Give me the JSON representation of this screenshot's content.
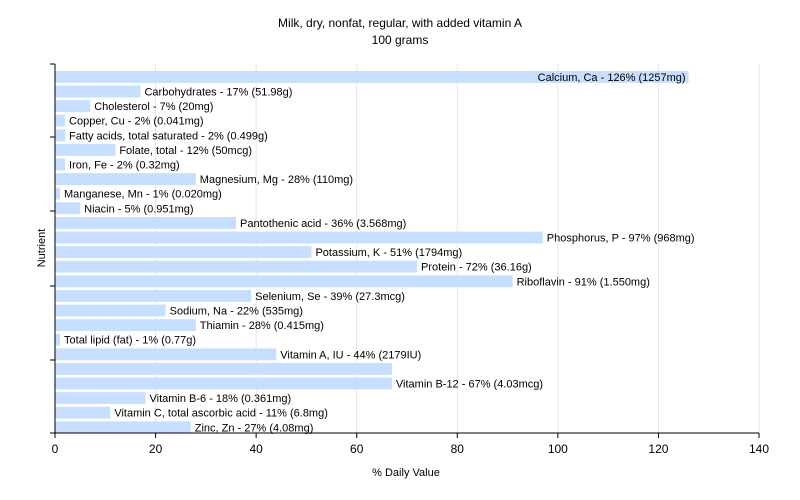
{
  "chart_data": {
    "type": "bar",
    "orientation": "horizontal",
    "title": "Milk, dry, nonfat, regular, with added vitamin A",
    "subtitle": "100 grams",
    "xlabel": "% Daily Value",
    "ylabel": "Nutrient",
    "xlim": [
      0,
      140
    ],
    "xticks": [
      "0",
      "20",
      "40",
      "60",
      "80",
      "100",
      "120",
      "140"
    ],
    "grid": true,
    "bar_color": "#c6deff",
    "categories": [
      "Calcium, Ca",
      "Carbohydrates",
      "Cholesterol",
      "Copper, Cu",
      "Fatty acids, total saturated",
      "Folate, total",
      "Iron, Fe",
      "Magnesium, Mg",
      "Manganese, Mn",
      "Niacin",
      "Pantothenic acid",
      "Phosphorus, P",
      "Potassium, K",
      "Protein",
      "Riboflavin",
      "Selenium, Se",
      "Sodium, Na",
      "Thiamin",
      "Total lipid (fat)",
      "Vitamin A, IU",
      "",
      "Vitamin B-12",
      "Vitamin B-6",
      "Vitamin C, total ascorbic acid",
      "Zinc, Zn"
    ],
    "values": [
      126,
      17,
      7,
      2,
      2,
      12,
      2,
      28,
      1,
      5,
      36,
      97,
      51,
      72,
      91,
      39,
      22,
      28,
      1,
      44,
      67,
      67,
      18,
      11,
      27
    ],
    "labels": [
      "Calcium, Ca - 126% (1257mg)",
      "Carbohydrates - 17% (51.98g)",
      "Cholesterol - 7% (20mg)",
      "Copper, Cu - 2% (0.041mg)",
      "Fatty acids, total saturated - 2% (0.499g)",
      "Folate, total - 12% (50mcg)",
      "Iron, Fe - 2% (0.32mg)",
      "Magnesium, Mg - 28% (110mg)",
      "Manganese, Mn - 1% (0.020mg)",
      "Niacin - 5% (0.951mg)",
      "Pantothenic acid - 36% (3.568mg)",
      "Phosphorus, P - 97% (968mg)",
      "Potassium, K - 51% (1794mg)",
      "Protein - 72% (36.16g)",
      "Riboflavin - 91% (1.550mg)",
      "Selenium, Se - 39% (27.3mcg)",
      "Sodium, Na - 22% (535mg)",
      "Thiamin - 28% (0.415mg)",
      "Total lipid (fat) - 1% (0.77g)",
      "Vitamin A, IU - 44% (2179IU)",
      "",
      "Vitamin B-12 - 67% (4.03mcg)",
      "Vitamin B-6 - 18% (0.361mg)",
      "Vitamin C, total ascorbic acid - 11% (6.8mg)",
      "Zinc, Zn - 27% (4.08mg)"
    ]
  }
}
